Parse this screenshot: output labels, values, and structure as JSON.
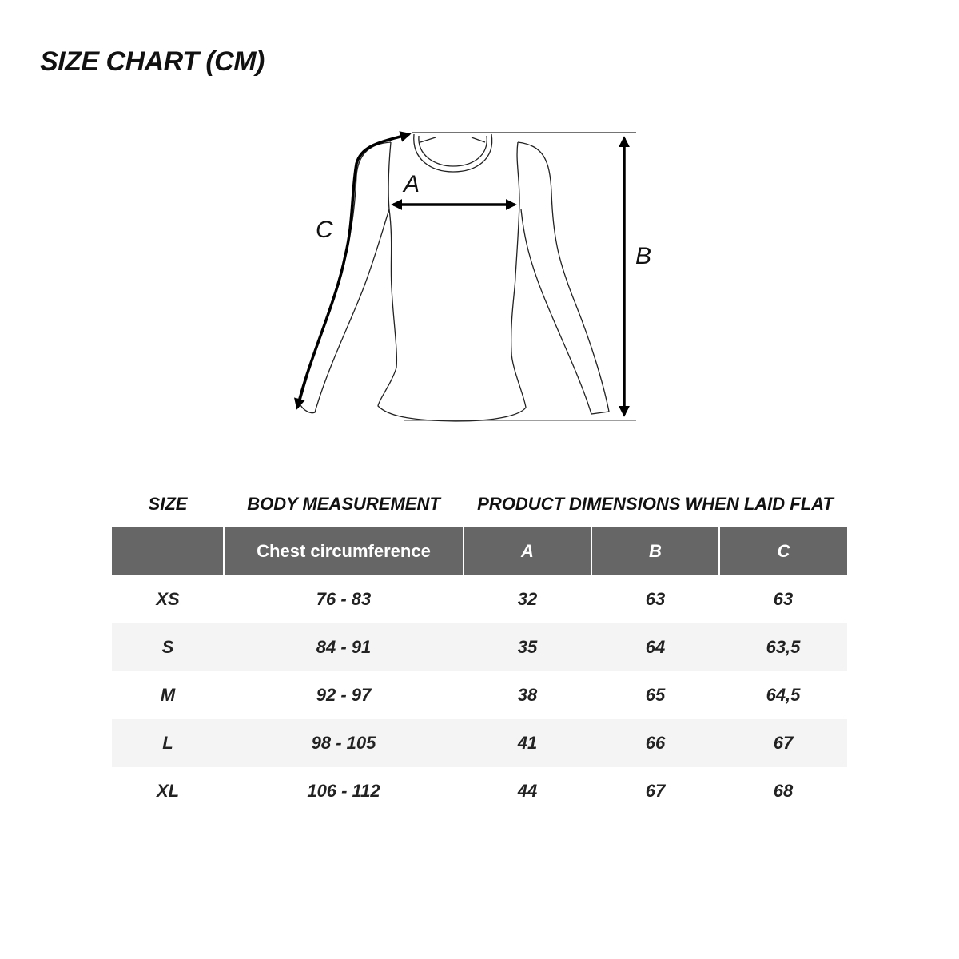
{
  "title": "SIZE CHART (CM)",
  "diagram": {
    "labels": {
      "a": "A",
      "b": "B",
      "c": "C"
    }
  },
  "table": {
    "section_headers": {
      "size": "SIZE",
      "body": "BODY MEASUREMENT",
      "product": "PRODUCT DIMENSIONS WHEN LAID FLAT"
    },
    "columns": [
      "",
      "Chest circumference",
      "A",
      "B",
      "C"
    ],
    "rows": [
      {
        "size": "XS",
        "chest": "76 - 83",
        "a": "32",
        "b": "63",
        "c": "63"
      },
      {
        "size": "S",
        "chest": "84 - 91",
        "a": "35",
        "b": "64",
        "c": "63,5"
      },
      {
        "size": "M",
        "chest": "92 - 97",
        "a": "38",
        "b": "65",
        "c": "64,5"
      },
      {
        "size": "L",
        "chest": "98 - 105",
        "a": "41",
        "b": "66",
        "c": "67"
      },
      {
        "size": "XL",
        "chest": "106 - 112",
        "a": "44",
        "b": "67",
        "c": "68"
      }
    ],
    "colors": {
      "header_bg": "#666666",
      "alt_row_bg": "#f4f4f4"
    }
  }
}
